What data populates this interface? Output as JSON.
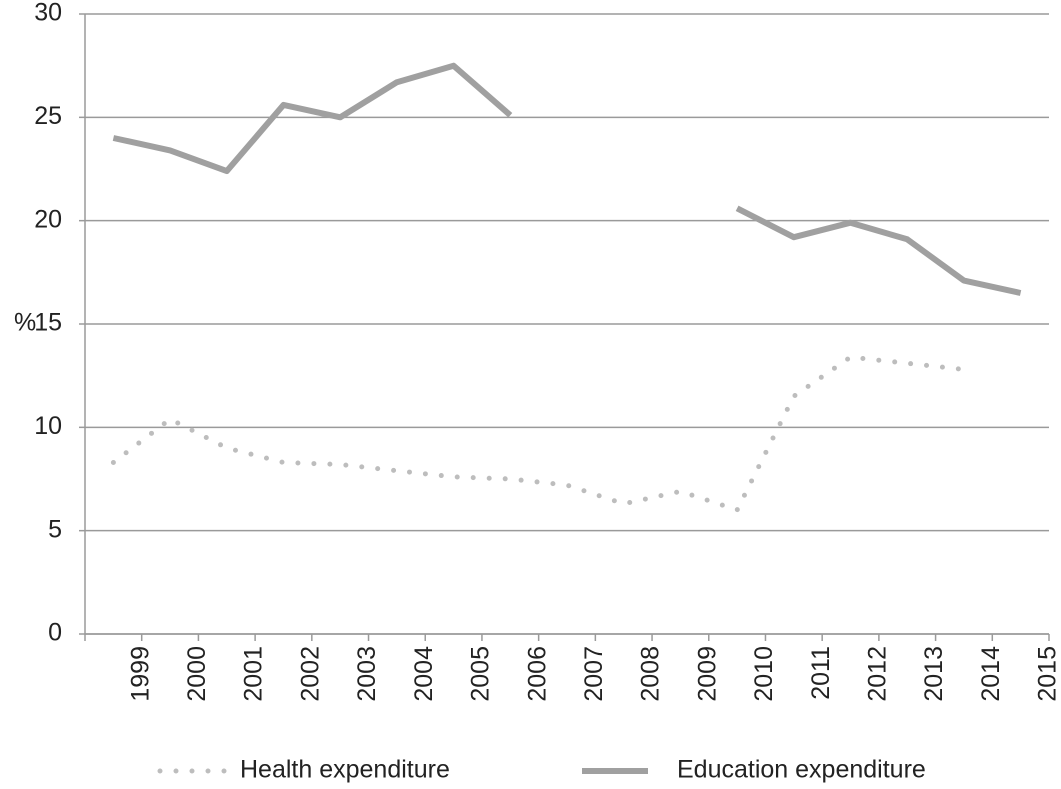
{
  "chart_data": {
    "type": "line",
    "y_label": "%",
    "categories": [
      "1999",
      "2000",
      "2001",
      "2002",
      "2003",
      "2004",
      "2005",
      "2006",
      "2007",
      "2008",
      "2009",
      "2010",
      "2011",
      "2012",
      "2013",
      "2014",
      "2015"
    ],
    "series": [
      {
        "name": "Health expenditure",
        "color": "#bdbdbd",
        "style": "dotted",
        "values": [
          8.3,
          10.4,
          9.0,
          8.3,
          8.2,
          7.9,
          7.6,
          7.5,
          7.2,
          6.3,
          6.9,
          6.0,
          11.5,
          13.4,
          13.1,
          12.8,
          null
        ]
      },
      {
        "name": "Education expenditure",
        "color": "#a0a0a0",
        "style": "solid",
        "values": [
          24.0,
          23.4,
          22.4,
          25.6,
          25.0,
          26.7,
          27.5,
          25.1,
          null,
          null,
          null,
          20.6,
          19.2,
          19.9,
          19.1,
          17.1,
          16.5
        ]
      }
    ],
    "ylim": [
      0,
      30
    ],
    "yticks": [
      0,
      5,
      10,
      15,
      20,
      25,
      30
    ],
    "grid": true
  }
}
